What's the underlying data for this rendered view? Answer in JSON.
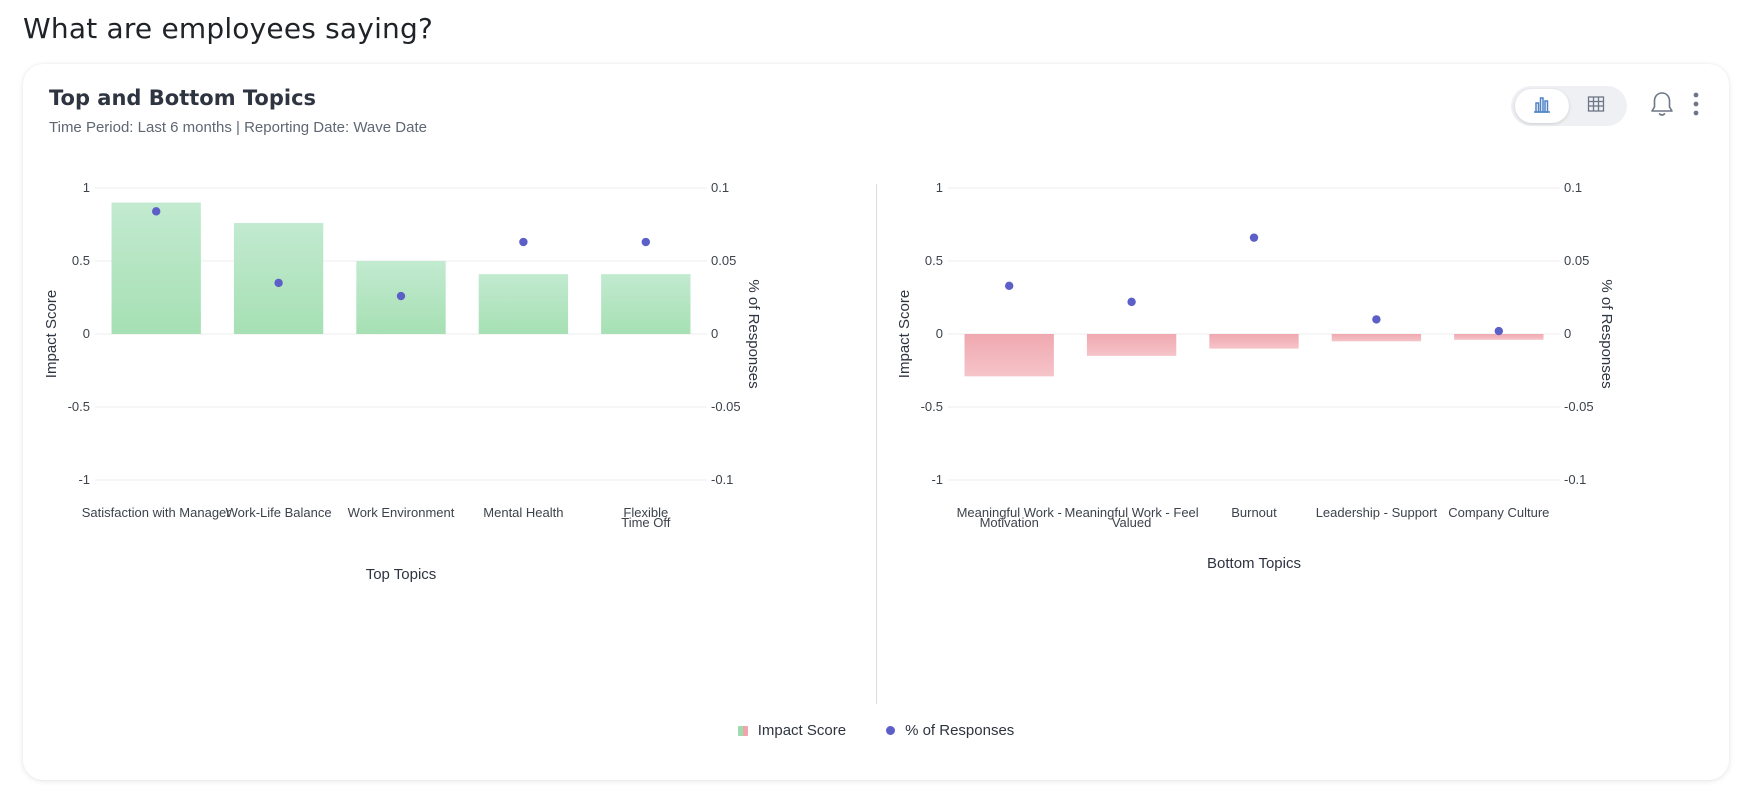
{
  "page": {
    "title": "What are employees saying?"
  },
  "card": {
    "title": "Top and Bottom Topics",
    "subtitle": "Time Period: Last 6 months | Reporting Date: Wave Date"
  },
  "toolbar": {
    "icons": [
      "bar-chart-icon",
      "table-icon",
      "bell-icon",
      "more-vertical-icon"
    ],
    "active_view": "chart"
  },
  "legend": {
    "impact_label": "Impact Score",
    "responses_label": "% of Responses"
  },
  "colors": {
    "positive_bar": "#a6e0b3",
    "negative_bar": "#f0a8b0",
    "dot": "#5b5fc7",
    "grid": "#ececec"
  },
  "chart_data": [
    {
      "type": "bar",
      "title": "",
      "xlabel": "Top Topics",
      "ylabel": "Impact Score",
      "y2label": "% of Responses",
      "ylim": [
        -1,
        1
      ],
      "y2lim": [
        -0.1,
        0.1
      ],
      "yticks": [
        "1",
        "0.5",
        "0",
        "-0.5",
        "-1"
      ],
      "y2ticks": [
        "0.1",
        "0.05",
        "0",
        "-0.05",
        "-0.1"
      ],
      "categories": [
        [
          "Satisfaction with Manager"
        ],
        [
          "Work-Life Balance"
        ],
        [
          "Work Environment"
        ],
        [
          "Mental Health"
        ],
        [
          "Flexible",
          "Time Off"
        ]
      ],
      "series": [
        {
          "name": "Impact Score",
          "axis": "left",
          "values": [
            0.9,
            0.76,
            0.5,
            0.41,
            0.41
          ]
        },
        {
          "name": "% of Responses",
          "axis": "right",
          "values": [
            0.084,
            0.035,
            0.026,
            0.063,
            0.063
          ]
        }
      ]
    },
    {
      "type": "bar",
      "title": "",
      "xlabel": "Bottom Topics",
      "ylabel": "Impact Score",
      "y2label": "% of Responses",
      "ylim": [
        -1,
        1
      ],
      "y2lim": [
        -0.1,
        0.1
      ],
      "yticks": [
        "1",
        "0.5",
        "0",
        "-0.5",
        "-1"
      ],
      "y2ticks": [
        "0.1",
        "0.05",
        "0",
        "-0.05",
        "-0.1"
      ],
      "categories": [
        [
          "Meaningful Work -",
          "Motivation"
        ],
        [
          "Meaningful Work - Feel",
          "Valued"
        ],
        [
          "Burnout"
        ],
        [
          "Leadership - Support"
        ],
        [
          "Company Culture"
        ]
      ],
      "series": [
        {
          "name": "Impact Score",
          "axis": "left",
          "values": [
            -0.29,
            -0.15,
            -0.1,
            -0.05,
            -0.04
          ]
        },
        {
          "name": "% of Responses",
          "axis": "right",
          "values": [
            0.033,
            0.022,
            0.066,
            0.01,
            0.002
          ]
        }
      ]
    }
  ]
}
